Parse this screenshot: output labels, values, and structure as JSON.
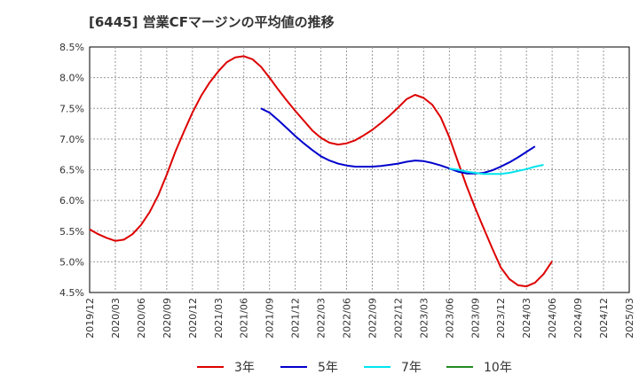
{
  "chart_data": {
    "type": "line",
    "title": "[6445]  営業CFマージンの平均値の推移",
    "xlabel": "",
    "ylabel": "",
    "x_ticks": [
      "2019/12",
      "2020/03",
      "2020/06",
      "2020/09",
      "2020/12",
      "2021/03",
      "2021/06",
      "2021/09",
      "2021/12",
      "2022/03",
      "2022/06",
      "2022/09",
      "2022/12",
      "2023/03",
      "2023/06",
      "2023/09",
      "2023/12",
      "2024/03",
      "2024/06",
      "2024/09",
      "2024/12",
      "2025/03"
    ],
    "y_ticks": [
      "4.5%",
      "5.0%",
      "5.5%",
      "6.0%",
      "6.5%",
      "7.0%",
      "7.5%",
      "8.0%",
      "8.5%"
    ],
    "ylim": [
      4.5,
      8.5
    ],
    "grid": true,
    "legend_position": "bottom",
    "series": [
      {
        "name": "3年",
        "color": "#dd0000",
        "points": [
          [
            "2019/12",
            5.53
          ],
          [
            "2020/01",
            5.45
          ],
          [
            "2020/02",
            5.39
          ],
          [
            "2020/03",
            5.34
          ],
          [
            "2020/04",
            5.36
          ],
          [
            "2020/05",
            5.45
          ],
          [
            "2020/06",
            5.6
          ],
          [
            "2020/07",
            5.81
          ],
          [
            "2020/08",
            6.08
          ],
          [
            "2020/09",
            6.42
          ],
          [
            "2020/10",
            6.79
          ],
          [
            "2020/11",
            7.12
          ],
          [
            "2020/12",
            7.43
          ],
          [
            "2020/13",
            7.7
          ],
          [
            "2021/02",
            7.92
          ],
          [
            "2021/03",
            8.1
          ],
          [
            "2021/04",
            8.25
          ],
          [
            "2021/05",
            8.33
          ],
          [
            "2021/06",
            8.35
          ],
          [
            "2021/07",
            8.3
          ],
          [
            "2021/08",
            8.18
          ],
          [
            "2021/09",
            8.0
          ],
          [
            "2021/10",
            7.81
          ],
          [
            "2021/11",
            7.63
          ],
          [
            "2021/12",
            7.46
          ],
          [
            "2022/01",
            7.3
          ],
          [
            "2022/02",
            7.14
          ],
          [
            "2022/03",
            7.02
          ],
          [
            "2022/04",
            6.94
          ],
          [
            "2022/05",
            6.91
          ],
          [
            "2022/06",
            6.93
          ],
          [
            "2022/07",
            6.98
          ],
          [
            "2022/08",
            7.06
          ],
          [
            "2022/09",
            7.15
          ],
          [
            "2022/10",
            7.26
          ],
          [
            "2022/11",
            7.38
          ],
          [
            "2022/12",
            7.51
          ],
          [
            "2023/01",
            7.65
          ],
          [
            "2023/02",
            7.72
          ],
          [
            "2023/03",
            7.67
          ],
          [
            "2023/04",
            7.56
          ],
          [
            "2023/05",
            7.35
          ],
          [
            "2023/06",
            7.03
          ],
          [
            "2023/07",
            6.63
          ],
          [
            "2023/08",
            6.24
          ],
          [
            "2023/09",
            5.88
          ],
          [
            "2023/10",
            5.55
          ],
          [
            "2023/11",
            5.22
          ],
          [
            "2023/12",
            4.91
          ],
          [
            "2024/01",
            4.72
          ],
          [
            "2024/02",
            4.62
          ],
          [
            "2024/03",
            4.6
          ],
          [
            "2024/04",
            4.66
          ],
          [
            "2024/05",
            4.8
          ],
          [
            "2024/06",
            5.01
          ]
        ]
      },
      {
        "name": "5年",
        "color": "#0000cc",
        "points": [
          [
            "2021/08",
            7.5
          ],
          [
            "2021/09",
            7.43
          ],
          [
            "2021/10",
            7.31
          ],
          [
            "2021/11",
            7.18
          ],
          [
            "2021/12",
            7.05
          ],
          [
            "2022/01",
            6.93
          ],
          [
            "2022/02",
            6.82
          ],
          [
            "2022/03",
            6.72
          ],
          [
            "2022/04",
            6.65
          ],
          [
            "2022/05",
            6.6
          ],
          [
            "2022/06",
            6.57
          ],
          [
            "2022/07",
            6.55
          ],
          [
            "2022/08",
            6.55
          ],
          [
            "2022/09",
            6.55
          ],
          [
            "2022/10",
            6.56
          ],
          [
            "2022/11",
            6.58
          ],
          [
            "2022/12",
            6.6
          ],
          [
            "2023/01",
            6.63
          ],
          [
            "2023/02",
            6.65
          ],
          [
            "2023/03",
            6.64
          ],
          [
            "2023/04",
            6.61
          ],
          [
            "2023/05",
            6.57
          ],
          [
            "2023/06",
            6.52
          ],
          [
            "2023/07",
            6.47
          ],
          [
            "2023/08",
            6.44
          ],
          [
            "2023/09",
            6.44
          ],
          [
            "2023/10",
            6.45
          ],
          [
            "2023/11",
            6.49
          ],
          [
            "2023/12",
            6.55
          ],
          [
            "2024/01",
            6.62
          ],
          [
            "2024/02",
            6.7
          ],
          [
            "2024/03",
            6.79
          ],
          [
            "2024/04",
            6.88
          ]
        ]
      },
      {
        "name": "7年",
        "color": "#00e5ee",
        "points": [
          [
            "2023/06",
            6.52
          ],
          [
            "2023/07",
            6.5
          ],
          [
            "2023/08",
            6.47
          ],
          [
            "2023/09",
            6.45
          ],
          [
            "2023/10",
            6.43
          ],
          [
            "2023/11",
            6.43
          ],
          [
            "2023/12",
            6.43
          ],
          [
            "2024/01",
            6.45
          ],
          [
            "2024/02",
            6.48
          ],
          [
            "2024/03",
            6.51
          ],
          [
            "2024/04",
            6.55
          ],
          [
            "2024/05",
            6.58
          ]
        ]
      },
      {
        "name": "10年",
        "color": "#228b22",
        "points": []
      }
    ]
  }
}
